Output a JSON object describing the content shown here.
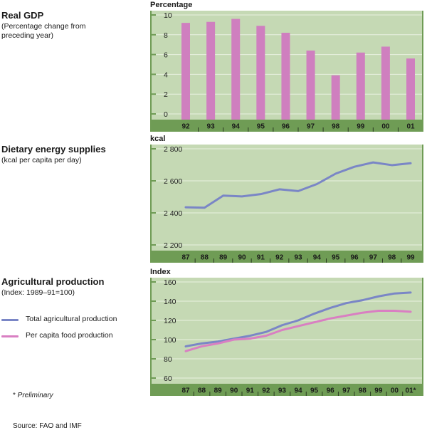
{
  "colors": {
    "plot_bg": "#c5d9b4",
    "axis_band": "#6f9c55",
    "grid": "#e9f1e1",
    "bar": "#cf7fbf",
    "total_line": "#7a86c6",
    "per_capita_line": "#d97fc2"
  },
  "sections": {
    "gdp": {
      "title": "Real GDP",
      "subtitle_line1": "(Percentage change from",
      "subtitle_line2": "preceding year)",
      "unit": "Percentage"
    },
    "energy": {
      "title": "Dietary energy supplies",
      "subtitle": "(kcal per capita per day)",
      "unit": "kcal"
    },
    "agri": {
      "title": "Agricultural production",
      "subtitle": "(Index: 1989–91=100)",
      "unit": "Index"
    }
  },
  "legend": {
    "total": "Total agricultural production",
    "per_capita": "Per capita food production"
  },
  "footnote": {
    "marker": "* ",
    "text": "Preliminary"
  },
  "source": "Source: FAO and IMF",
  "chart_data": [
    {
      "type": "bar",
      "title": "Real GDP",
      "ylabel": "Percentage",
      "categories": [
        "92",
        "93",
        "94",
        "95",
        "96",
        "97",
        "98",
        "99",
        "00",
        "01"
      ],
      "values": [
        9.2,
        9.3,
        9.6,
        8.9,
        8.2,
        6.4,
        3.9,
        6.2,
        6.8,
        5.6
      ],
      "ylim": [
        0,
        10
      ],
      "yticks": [
        "0",
        "2",
        "4",
        "6",
        "8",
        "10"
      ],
      "grid": true
    },
    {
      "type": "line",
      "title": "Dietary energy supplies",
      "ylabel": "kcal",
      "x": [
        "87",
        "88",
        "89",
        "90",
        "91",
        "92",
        "93",
        "94",
        "95",
        "96",
        "97",
        "98",
        "99"
      ],
      "series": [
        {
          "values": [
            2435,
            2432,
            2508,
            2503,
            2517,
            2547,
            2536,
            2580,
            2645,
            2688,
            2715,
            2698,
            2710
          ]
        }
      ],
      "ylim": [
        2200,
        2800
      ],
      "yticks": [
        "2 200",
        "2 400",
        "2 600",
        "2 800"
      ],
      "grid": true
    },
    {
      "type": "line",
      "title": "Agricultural production",
      "ylabel": "Index",
      "x": [
        "87",
        "88",
        "89",
        "90",
        "91",
        "92",
        "93",
        "94",
        "95",
        "96",
        "97",
        "98",
        "99",
        "00",
        "01*"
      ],
      "series": [
        {
          "name": "Total agricultural production",
          "values": [
            93,
            96,
            98,
            101,
            104,
            108,
            115,
            120,
            127,
            133,
            138,
            141,
            145,
            148,
            149
          ]
        },
        {
          "name": "Per capita food production",
          "values": [
            88,
            93,
            96,
            100,
            101,
            104,
            110,
            114,
            118,
            122,
            125,
            128,
            130,
            130,
            129
          ]
        }
      ],
      "ylim": [
        60,
        160
      ],
      "yticks": [
        "60",
        "80",
        "100",
        "120",
        "140",
        "160"
      ],
      "grid": true
    }
  ]
}
